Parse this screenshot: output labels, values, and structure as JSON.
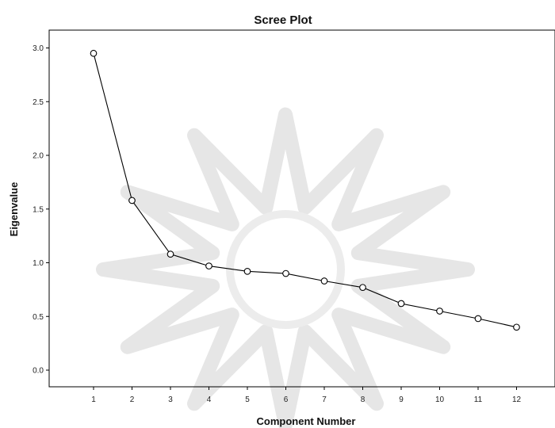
{
  "chart_data": {
    "type": "line",
    "title": "Scree Plot",
    "xlabel": "Component Number",
    "ylabel": "Eigenvalue",
    "x": [
      1,
      2,
      3,
      4,
      5,
      6,
      7,
      8,
      9,
      10,
      11,
      12
    ],
    "series": [
      {
        "values": [
          2.95,
          1.58,
          1.08,
          0.97,
          0.92,
          0.9,
          0.83,
          0.77,
          0.62,
          0.55,
          0.48,
          0.4
        ]
      }
    ],
    "xticks": [
      "1",
      "2",
      "3",
      "4",
      "5",
      "6",
      "7",
      "8",
      "9",
      "10",
      "11",
      "12"
    ],
    "yticks": [
      "0.0",
      "0.5",
      "1.0",
      "1.5",
      "2.0",
      "2.5",
      "3.0"
    ],
    "ylim": [
      0,
      3.0
    ],
    "grid": false,
    "marker": "open-circle",
    "colors": {
      "line": "#000000",
      "watermark": "#e6e6e6"
    }
  }
}
